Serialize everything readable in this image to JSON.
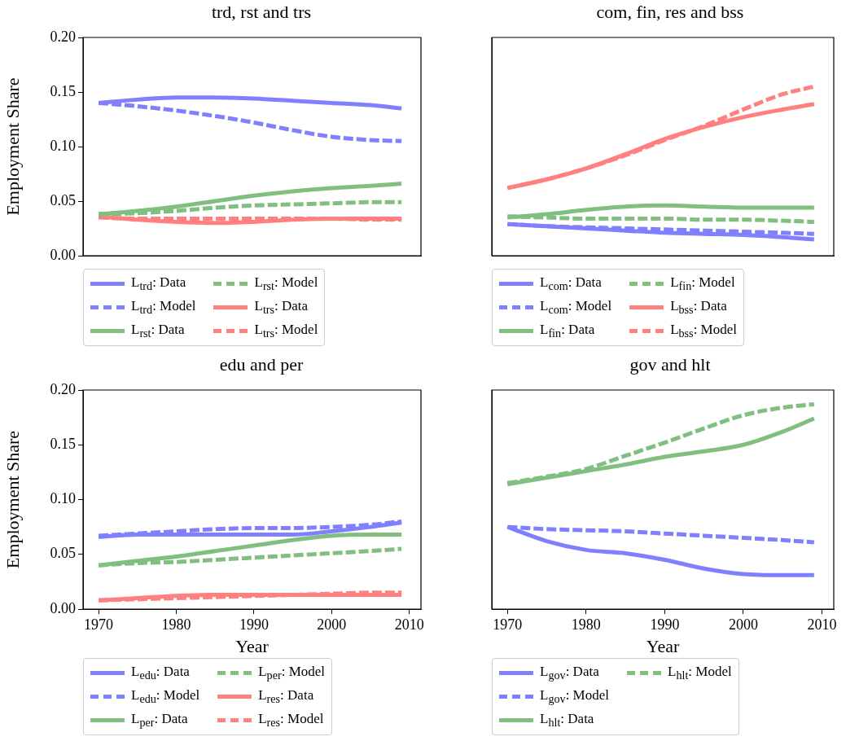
{
  "chart_data": [
    {
      "type": "line",
      "title": "trd, rst and trs",
      "ylabel": "Employment Share",
      "x": [
        1970,
        1975,
        1980,
        1985,
        1990,
        1995,
        2000,
        2005,
        2009
      ],
      "xlim": [
        1968,
        2011.5
      ],
      "ylim": [
        0,
        0.2
      ],
      "yticks": [
        {
          "value": 0,
          "label": "0.00"
        },
        {
          "value": 0.05,
          "label": "0.05"
        },
        {
          "value": 0.1,
          "label": "0.10"
        },
        {
          "value": 0.15,
          "label": "0.15"
        },
        {
          "value": 0.2,
          "label": "0.20"
        }
      ],
      "tick_labels": "y",
      "grid": false,
      "legend": "bottom",
      "marker": "none",
      "series": [
        {
          "name": "L$_{trd}$: Data",
          "color": "#8080ff",
          "line_style": "solid",
          "values": [
            0.14,
            0.143,
            0.145,
            0.145,
            0.144,
            0.142,
            0.14,
            0.138,
            0.135
          ]
        },
        {
          "name": "L$_{trd}$: Model",
          "color": "#8080ff",
          "line_style": "dashed",
          "values": [
            0.14,
            0.137,
            0.133,
            0.128,
            0.122,
            0.115,
            0.109,
            0.106,
            0.105
          ]
        },
        {
          "name": "L$_{rst}$: Data",
          "color": "#80bf80",
          "line_style": "solid",
          "values": [
            0.038,
            0.041,
            0.045,
            0.05,
            0.055,
            0.059,
            0.062,
            0.064,
            0.066
          ]
        },
        {
          "name": "L$_{rst}$: Model",
          "color": "#80bf80",
          "line_style": "dashed",
          "values": [
            0.038,
            0.039,
            0.041,
            0.044,
            0.046,
            0.047,
            0.048,
            0.049,
            0.049
          ]
        },
        {
          "name": "L$_{trs}$: Data",
          "color": "#ff8080",
          "line_style": "solid",
          "values": [
            0.036,
            0.033,
            0.031,
            0.03,
            0.031,
            0.033,
            0.034,
            0.034,
            0.034
          ]
        },
        {
          "name": "L$_{trs}$: Model",
          "color": "#ff8080",
          "line_style": "dashed",
          "values": [
            0.035,
            0.034,
            0.034,
            0.034,
            0.034,
            0.034,
            0.034,
            0.033,
            0.033
          ]
        }
      ]
    },
    {
      "type": "line",
      "title": "com, fin, res and bss",
      "x": [
        1970,
        1975,
        1980,
        1985,
        1990,
        1995,
        2000,
        2005,
        2009
      ],
      "xlim": [
        1968,
        2011.5
      ],
      "ylim": [
        0,
        0.2
      ],
      "tick_labels": false,
      "grid": false,
      "legend": "bottom",
      "marker": "none",
      "series": [
        {
          "name": "L$_{com}$: Data",
          "color": "#8080ff",
          "line_style": "solid",
          "values": [
            0.029,
            0.027,
            0.025,
            0.023,
            0.021,
            0.02,
            0.019,
            0.017,
            0.015
          ]
        },
        {
          "name": "L$_{com}$: Model",
          "color": "#8080ff",
          "line_style": "dashed",
          "values": [
            0.029,
            0.027,
            0.026,
            0.025,
            0.024,
            0.023,
            0.022,
            0.021,
            0.02
          ]
        },
        {
          "name": "L$_{fin}$: Data",
          "color": "#80bf80",
          "line_style": "solid",
          "values": [
            0.035,
            0.038,
            0.042,
            0.045,
            0.046,
            0.045,
            0.044,
            0.044,
            0.044
          ]
        },
        {
          "name": "L$_{fin}$: Model",
          "color": "#80bf80",
          "line_style": "dashed",
          "values": [
            0.036,
            0.035,
            0.034,
            0.034,
            0.034,
            0.033,
            0.033,
            0.032,
            0.031
          ]
        },
        {
          "name": "L$_{bss}$: Data",
          "color": "#ff8080",
          "line_style": "solid",
          "values": [
            0.062,
            0.07,
            0.08,
            0.093,
            0.107,
            0.118,
            0.127,
            0.134,
            0.139
          ]
        },
        {
          "name": "L$_{bss}$: Model",
          "color": "#ff8080",
          "line_style": "dashed",
          "values": [
            0.062,
            0.07,
            0.08,
            0.092,
            0.106,
            0.119,
            0.134,
            0.148,
            0.155
          ]
        }
      ]
    },
    {
      "type": "line",
      "title": "edu and per",
      "xlabel": "Year",
      "ylabel": "Employment Share",
      "x": [
        1970,
        1975,
        1980,
        1985,
        1990,
        1995,
        2000,
        2005,
        2009
      ],
      "xlim": [
        1968,
        2011.5
      ],
      "xticks": [
        1970,
        1980,
        1990,
        2000,
        2010
      ],
      "ylim": [
        0,
        0.2
      ],
      "yticks": [
        {
          "value": 0,
          "label": "0.00"
        },
        {
          "value": 0.05,
          "label": "0.05"
        },
        {
          "value": 0.1,
          "label": "0.10"
        },
        {
          "value": 0.15,
          "label": "0.15"
        },
        {
          "value": 0.2,
          "label": "0.20"
        }
      ],
      "grid": false,
      "legend": "bottom",
      "marker": "none",
      "series": [
        {
          "name": "L$_{edu}$: Data",
          "color": "#8080ff",
          "line_style": "solid",
          "values": [
            0.066,
            0.068,
            0.068,
            0.068,
            0.068,
            0.068,
            0.071,
            0.075,
            0.079
          ]
        },
        {
          "name": "L$_{edu}$: Model",
          "color": "#8080ff",
          "line_style": "dashed",
          "values": [
            0.067,
            0.069,
            0.071,
            0.073,
            0.074,
            0.074,
            0.075,
            0.077,
            0.08
          ]
        },
        {
          "name": "L$_{per}$: Data",
          "color": "#80bf80",
          "line_style": "solid",
          "values": [
            0.04,
            0.044,
            0.048,
            0.053,
            0.058,
            0.063,
            0.067,
            0.068,
            0.068
          ]
        },
        {
          "name": "L$_{per}$: Model",
          "color": "#80bf80",
          "line_style": "dashed",
          "values": [
            0.04,
            0.042,
            0.043,
            0.045,
            0.047,
            0.049,
            0.051,
            0.053,
            0.055
          ]
        },
        {
          "name": "L$_{res}$: Data",
          "color": "#ff8080",
          "line_style": "solid",
          "values": [
            0.008,
            0.01,
            0.012,
            0.013,
            0.013,
            0.013,
            0.013,
            0.013,
            0.013
          ]
        },
        {
          "name": "L$_{res}$: Model",
          "color": "#ff8080",
          "line_style": "dashed",
          "values": [
            0.008,
            0.009,
            0.01,
            0.011,
            0.012,
            0.013,
            0.014,
            0.015,
            0.015
          ]
        }
      ]
    },
    {
      "type": "line",
      "title": "gov and hlt",
      "xlabel": "Year",
      "x": [
        1970,
        1975,
        1980,
        1985,
        1990,
        1995,
        2000,
        2005,
        2009
      ],
      "xlim": [
        1968,
        2011.5
      ],
      "xticks": [
        1970,
        1980,
        1990,
        2000,
        2010
      ],
      "ylim": [
        0,
        0.2
      ],
      "tick_labels": "x",
      "grid": false,
      "legend": "bottom",
      "marker": "none",
      "series": [
        {
          "name": "L$_{gov}$: Data",
          "color": "#8080ff",
          "line_style": "solid",
          "values": [
            0.075,
            0.062,
            0.054,
            0.051,
            0.045,
            0.037,
            0.032,
            0.031,
            0.031
          ]
        },
        {
          "name": "L$_{gov}$: Model",
          "color": "#8080ff",
          "line_style": "dashed",
          "values": [
            0.075,
            0.073,
            0.072,
            0.071,
            0.069,
            0.067,
            0.065,
            0.063,
            0.061
          ]
        },
        {
          "name": "L$_{hlt}$: Data",
          "color": "#80bf80",
          "line_style": "solid",
          "values": [
            0.114,
            0.12,
            0.126,
            0.132,
            0.139,
            0.144,
            0.15,
            0.162,
            0.174
          ]
        },
        {
          "name": "L$_{hlt}$: Model",
          "color": "#80bf80",
          "line_style": "dashed",
          "values": [
            0.115,
            0.121,
            0.128,
            0.14,
            0.152,
            0.165,
            0.177,
            0.184,
            0.187
          ]
        }
      ]
    }
  ]
}
